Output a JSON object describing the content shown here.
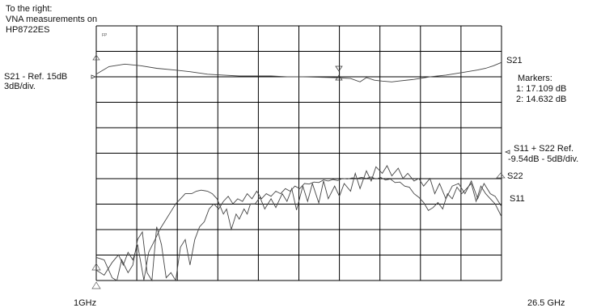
{
  "header": {
    "lines": [
      "To the right:",
      "VNA measurements on",
      "HP8722ES"
    ]
  },
  "plot_tag": "FP",
  "chart_data": {
    "type": "line",
    "xlim": [
      1,
      26.5
    ],
    "x_unit": "GHz",
    "tick_labels": {
      "start": "1GHz",
      "stop": "26.5 GHz"
    },
    "grid": {
      "divisions_x": 10,
      "divisions_y": 10
    },
    "s21_scale": {
      "text_lines": [
        "S21 -  Ref. 15dB",
        "3dB/div."
      ],
      "ref_db": 15,
      "per_div_db": 3,
      "ref_division": 8
    },
    "s11_s22_scale": {
      "text_lines": [
        "S11 + S22 Ref.",
        "-9.54dB - 5dB/div."
      ],
      "ref_db": -9.54,
      "per_div_db": 5,
      "ref_division": 5
    },
    "markers": {
      "title": "Markers:",
      "entries": [
        "1: 17.109 dB",
        "2: 14.632 dB"
      ]
    },
    "series": [
      {
        "name": "S21",
        "x": [
          1,
          1.8,
          2.8,
          3.8,
          4.8,
          5.9,
          6.9,
          8,
          9,
          10,
          11,
          12,
          13,
          14,
          15,
          16,
          17,
          17.6,
          18,
          18.5,
          19,
          19.6,
          20,
          21,
          22,
          23,
          24,
          25,
          25.5,
          26,
          26.5
        ],
        "y": [
          15.3,
          16.2,
          16.5,
          16.3,
          16.0,
          15.8,
          15.6,
          15.3,
          15.2,
          15.1,
          15.1,
          15.1,
          15.0,
          15.0,
          14.95,
          14.9,
          14.8,
          14.4,
          14.9,
          14.6,
          14.5,
          14.4,
          14.5,
          14.7,
          15.0,
          15.2,
          15.5,
          15.8,
          16.0,
          16.3,
          16.7
        ]
      },
      {
        "name": "S22",
        "x": [
          1,
          1.5,
          2,
          2.4,
          2.7,
          3,
          3.3,
          3.6,
          4,
          4.3,
          4.7,
          5,
          5.3,
          5.7,
          6,
          6.3,
          6.6,
          7,
          7.3,
          7.6,
          8,
          8.3,
          8.6,
          9,
          9.2,
          9.5,
          9.8,
          10,
          10.3,
          10.5,
          10.7,
          11,
          11.3,
          11.6,
          12,
          12.3,
          12.7,
          13,
          13.3,
          13.6,
          14,
          14.3,
          14.6,
          15,
          15.3,
          15.6,
          16,
          16.3,
          16.6,
          17,
          17.3,
          17.6,
          18,
          18.3,
          18.6,
          19,
          19.3,
          19.6,
          20,
          20.3,
          20.6,
          21,
          21.3,
          21.6,
          22,
          22.3,
          22.6,
          23,
          23.4,
          23.8,
          24.2,
          24.6,
          25,
          25.4,
          25.8,
          26.1,
          26.5
        ],
        "y": [
          -32.5,
          -33.5,
          -31,
          -29.5,
          -31.5,
          -29,
          -30.5,
          -27.5,
          -34.5,
          -29,
          -26.5,
          -24.5,
          -23,
          -21,
          -19.5,
          -18.5,
          -17.5,
          -17.5,
          -17,
          -16.8,
          -17,
          -17.5,
          -18.5,
          -21.5,
          -20.5,
          -24.5,
          -21.5,
          -22.5,
          -20.5,
          -21.5,
          -19.5,
          -19.5,
          -18.2,
          -20.5,
          -18.5,
          -20.2,
          -17.5,
          -19,
          -16.5,
          -20.7,
          -16,
          -19,
          -15.5,
          -19.3,
          -15,
          -18.5,
          -16,
          -18,
          -15.5,
          -17,
          -13.5,
          -16.5,
          -13,
          -15,
          -12.2,
          -13.5,
          -12,
          -14,
          -12.5,
          -14.5,
          -13.5,
          -15,
          -14.5,
          -16,
          -14.5,
          -17.5,
          -15.5,
          -18.5,
          -16,
          -15.5,
          -17.5,
          -15,
          -18.5,
          -15.5,
          -17.5,
          -18,
          -20
        ]
      },
      {
        "name": "S11",
        "x": [
          1,
          1.5,
          2,
          2.3,
          2.6,
          3,
          3.3,
          3.6,
          3.9,
          4.2,
          4.5,
          4.8,
          5.1,
          5.4,
          5.7,
          6,
          6.3,
          6.6,
          6.9,
          7.2,
          7.5,
          7.8,
          8.1,
          8.4,
          8.7,
          9,
          9.3,
          9.6,
          9.9,
          10.2,
          10.5,
          10.8,
          11.1,
          11.4,
          11.7,
          12,
          12.3,
          12.6,
          12.9,
          13.2,
          13.5,
          13.8,
          14.1,
          14.4,
          14.7,
          15,
          15.3,
          15.6,
          15.9,
          16.2,
          16.5,
          16.8,
          17.1,
          17.4,
          17.7,
          18,
          18.3,
          18.6,
          18.9,
          19.2,
          19.5,
          19.8,
          20.1,
          20.4,
          20.7,
          21,
          21.3,
          21.6,
          21.9,
          22.2,
          22.5,
          22.8,
          23.1,
          23.4,
          23.7,
          24,
          24.3,
          24.6,
          24.9,
          25.2,
          25.5,
          25.8,
          26.1,
          26.5
        ],
        "y": [
          -30,
          -30.5,
          -34,
          -35,
          -30.5,
          -33,
          -31.5,
          -26.5,
          -25,
          -33,
          -35.5,
          -24,
          -27.5,
          -34,
          -33,
          -35,
          -28,
          -26.5,
          -31.5,
          -26.5,
          -24,
          -23,
          -20.5,
          -19.5,
          -20.5,
          -19,
          -18,
          -19.5,
          -18.5,
          -19,
          -17.5,
          -18.5,
          -17,
          -18.5,
          -17.5,
          -18,
          -17,
          -17.5,
          -16.5,
          -17,
          -16,
          -16.5,
          -15.5,
          -15.6,
          -15.2,
          -15.3,
          -14.8,
          -15,
          -14.7,
          -14.9,
          -14.5,
          -14.6,
          -14.4,
          -14.5,
          -14.3,
          -14.5,
          -14.2,
          -14.6,
          -14.3,
          -14.8,
          -14.6,
          -15.3,
          -15.2,
          -16,
          -16.2,
          -17.5,
          -18.2,
          -19.2,
          -20.8,
          -20.2,
          -19.2,
          -20.5,
          -17.5,
          -18.5,
          -16.2,
          -17.5,
          -16.5,
          -15.5,
          -19,
          -16,
          -17.5,
          -18.5,
          -19.5,
          -22
        ]
      }
    ]
  }
}
